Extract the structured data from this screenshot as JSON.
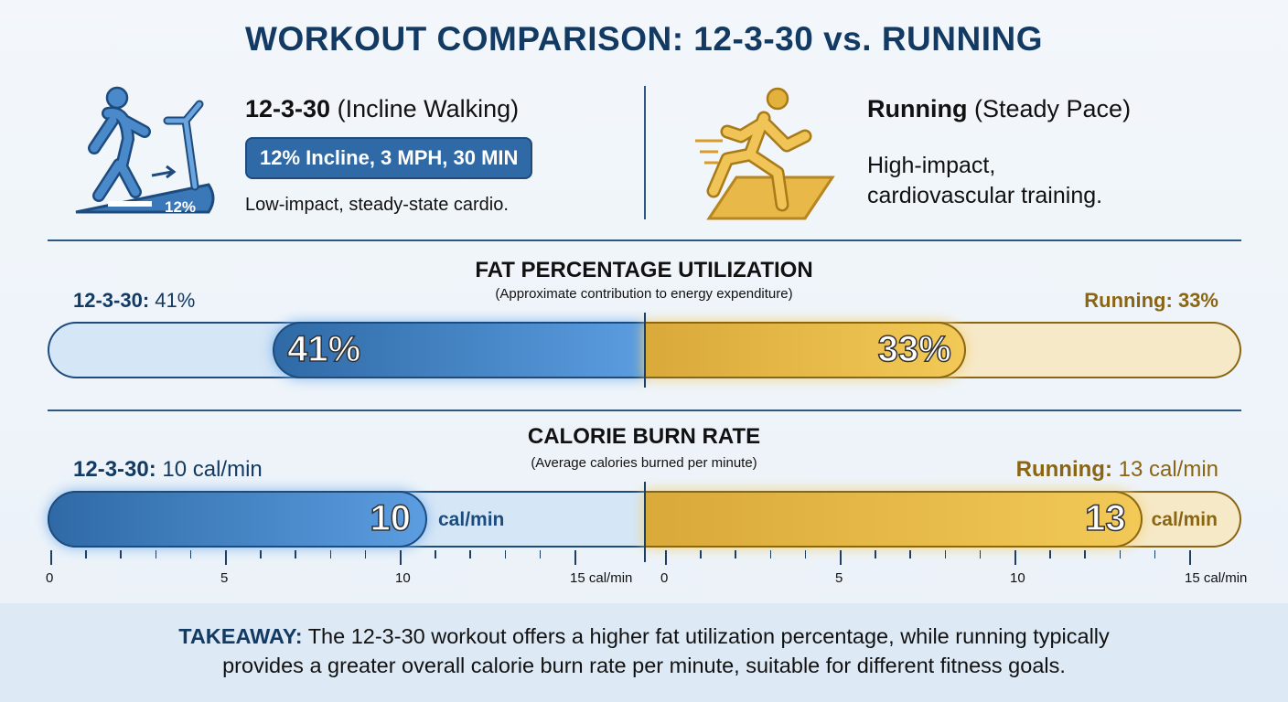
{
  "title": "WORKOUT COMPARISON: 12-3-30 vs. RUNNING",
  "left": {
    "name": "12-3-30",
    "qualifier": "(Incline Walking)",
    "spec": "12% Incline, 3 MPH, 30 MIN",
    "desc": "Low-impact, steady-state cardio.",
    "icon": "treadmill-walker-icon",
    "icon_label": "12%"
  },
  "right": {
    "name": "Running",
    "qualifier": "(Steady Pace)",
    "desc1": "High-impact,",
    "desc2": "cardiovascular training.",
    "icon": "runner-icon"
  },
  "colors": {
    "walking": "#3f7fc0",
    "running": "#e3b23c",
    "title": "#123a63"
  },
  "chart_data": [
    {
      "type": "bar",
      "title": "FAT PERCENTAGE UTILIZATION",
      "subtitle": "(Approximate contribution to energy expenditure)",
      "unit": "%",
      "series": [
        {
          "name": "12-3-30",
          "value": 41,
          "label": "12-3-30:",
          "value_label": "41%",
          "bar_label": "41%"
        },
        {
          "name": "Running",
          "value": 33,
          "label": "Running:",
          "value_label": "33%",
          "bar_label": "33%"
        }
      ]
    },
    {
      "type": "bar",
      "title": "CALORIE BURN RATE",
      "subtitle": "(Average calories burned per minute)",
      "unit": "cal/min",
      "xlim": [
        0,
        15
      ],
      "ticks": [
        "0",
        "5",
        "10",
        "15 cal/min"
      ],
      "series": [
        {
          "name": "12-3-30",
          "value": 10,
          "label": "12-3-30:",
          "value_label": "10 cal/min",
          "bar_label": "10",
          "unit_label": "cal/min"
        },
        {
          "name": "Running",
          "value": 13,
          "label": "Running:",
          "value_label": "13 cal/min",
          "bar_label": "13",
          "unit_label": "cal/min"
        }
      ]
    }
  ],
  "takeaway": {
    "label": "TAKEAWAY:",
    "line1": "The 12-3-30 workout offers a higher fat utilization percentage, while running typically",
    "line2": "provides a greater overall calorie burn rate per minute, suitable for different fitness goals."
  }
}
